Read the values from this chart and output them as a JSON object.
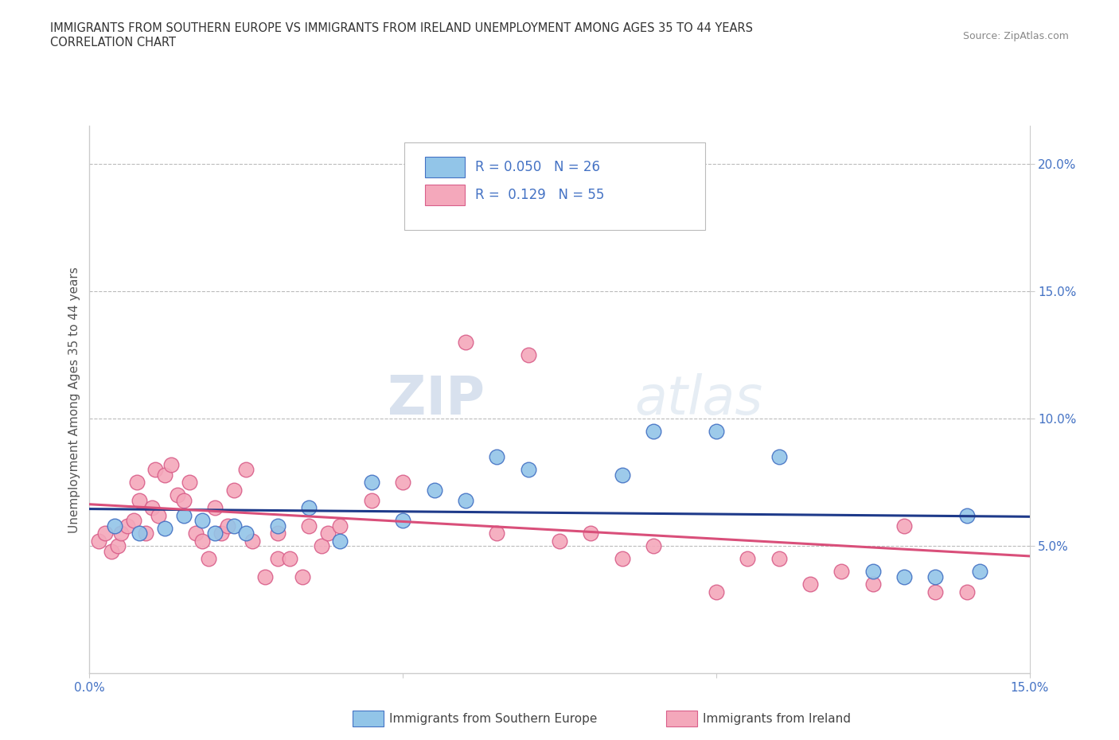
{
  "title_line1": "IMMIGRANTS FROM SOUTHERN EUROPE VS IMMIGRANTS FROM IRELAND UNEMPLOYMENT AMONG AGES 35 TO 44 YEARS",
  "title_line2": "CORRELATION CHART",
  "source": "Source: ZipAtlas.com",
  "ylabel": "Unemployment Among Ages 35 to 44 years",
  "xlim": [
    0.0,
    15.0
  ],
  "ylim": [
    0.0,
    21.5
  ],
  "blue_color": "#92C5E8",
  "pink_color": "#F4A8BB",
  "blue_edge_color": "#4472C4",
  "pink_edge_color": "#D95F8A",
  "blue_line_color": "#1E3A8A",
  "pink_line_color": "#D94F7A",
  "axis_label_color": "#4472C4",
  "watermark_color": "#C8D8EC",
  "legend_r1": "R = 0.050",
  "legend_n1": "N = 26",
  "legend_r2": "R =  0.129",
  "legend_n2": "N = 55",
  "legend_color": "#4472C4",
  "blue_scatter_x": [
    0.4,
    0.8,
    1.2,
    1.5,
    1.8,
    2.0,
    2.3,
    2.5,
    3.0,
    3.5,
    4.0,
    4.5,
    5.0,
    5.5,
    6.0,
    6.5,
    7.0,
    8.5,
    9.0,
    10.0,
    11.0,
    12.5,
    13.0,
    13.5,
    14.0,
    14.2
  ],
  "blue_scatter_y": [
    5.8,
    5.5,
    5.7,
    6.2,
    6.0,
    5.5,
    5.8,
    5.5,
    5.8,
    6.5,
    5.2,
    7.5,
    6.0,
    7.2,
    6.8,
    8.5,
    8.0,
    7.8,
    9.5,
    9.5,
    8.5,
    4.0,
    3.8,
    3.8,
    6.2,
    4.0
  ],
  "pink_scatter_x": [
    0.15,
    0.25,
    0.35,
    0.45,
    0.5,
    0.6,
    0.7,
    0.75,
    0.8,
    0.9,
    1.0,
    1.05,
    1.1,
    1.2,
    1.3,
    1.4,
    1.5,
    1.6,
    1.7,
    1.8,
    1.9,
    2.0,
    2.1,
    2.2,
    2.3,
    2.5,
    2.6,
    2.8,
    3.0,
    3.0,
    3.2,
    3.4,
    3.5,
    3.7,
    3.8,
    4.0,
    4.5,
    5.0,
    5.5,
    6.0,
    6.5,
    7.0,
    7.5,
    8.0,
    8.5,
    9.0,
    10.0,
    10.5,
    11.0,
    11.5,
    12.0,
    12.5,
    13.0,
    13.5,
    14.0
  ],
  "pink_scatter_y": [
    5.2,
    5.5,
    4.8,
    5.0,
    5.5,
    5.8,
    6.0,
    7.5,
    6.8,
    5.5,
    6.5,
    8.0,
    6.2,
    7.8,
    8.2,
    7.0,
    6.8,
    7.5,
    5.5,
    5.2,
    4.5,
    6.5,
    5.5,
    5.8,
    7.2,
    8.0,
    5.2,
    3.8,
    4.5,
    5.5,
    4.5,
    3.8,
    5.8,
    5.0,
    5.5,
    5.8,
    6.8,
    7.5,
    18.5,
    13.0,
    5.5,
    12.5,
    5.2,
    5.5,
    4.5,
    5.0,
    3.2,
    4.5,
    4.5,
    3.5,
    4.0,
    3.5,
    5.8,
    3.2,
    3.2
  ],
  "grid_color": "#BBBBBB",
  "spine_color": "#CCCCCC"
}
